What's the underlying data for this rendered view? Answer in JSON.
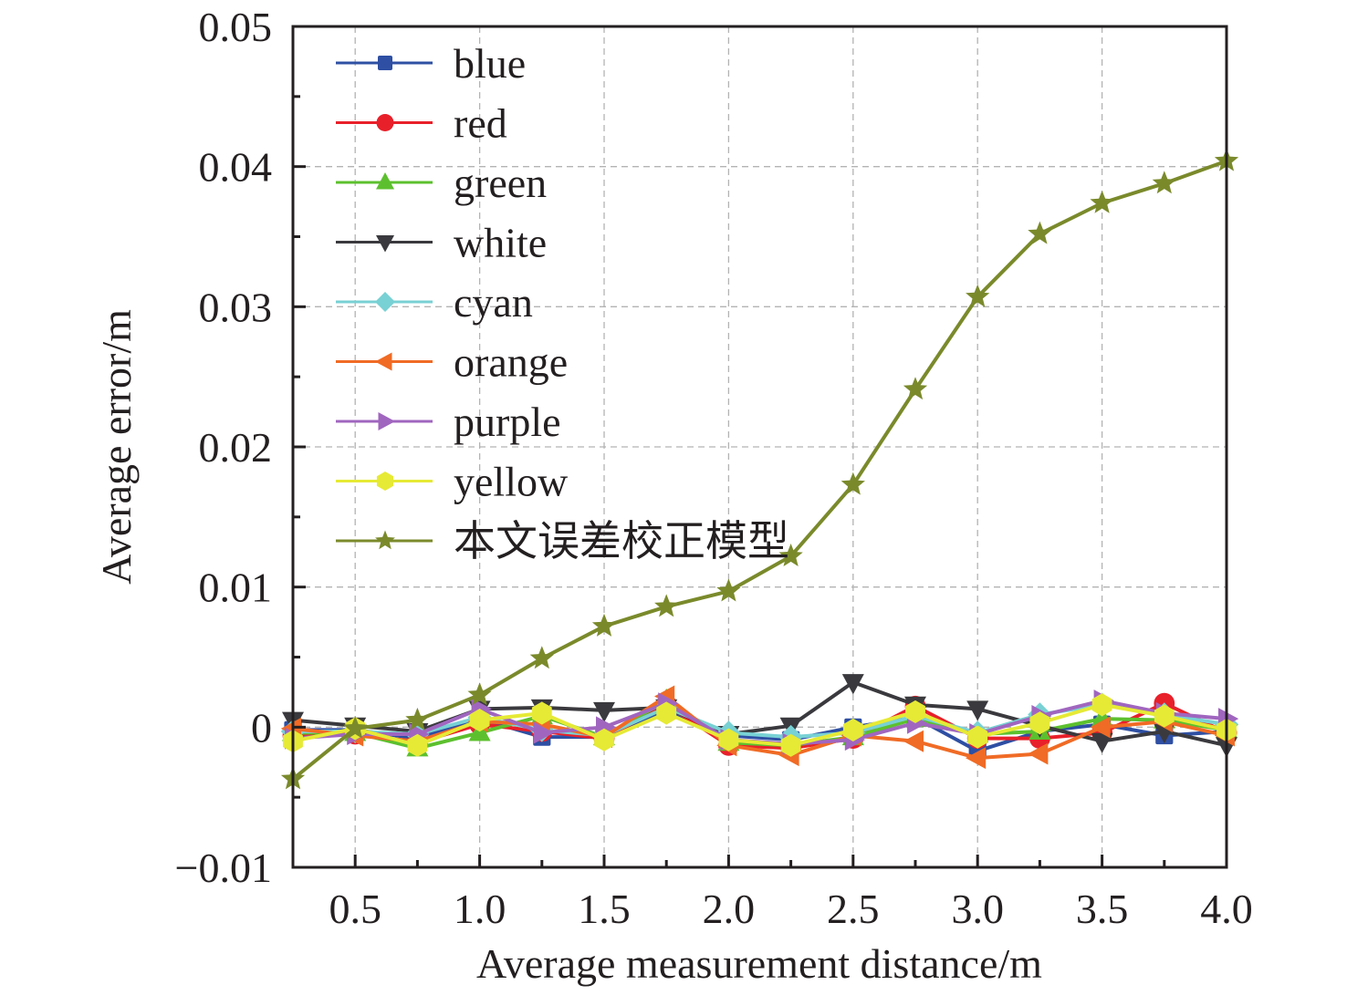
{
  "chart_data": {
    "type": "line",
    "title": "",
    "xlabel": "Average measurement distance/m",
    "ylabel": "Average error/m",
    "xlim": [
      0.25,
      4.0
    ],
    "ylim": [
      -0.01,
      0.05
    ],
    "grid": true,
    "legend_position": "top-left",
    "x_ticks": [
      "0.5",
      "1.0",
      "1.5",
      "2.0",
      "2.5",
      "3.0",
      "3.5",
      "4.0"
    ],
    "x_tick_values": [
      0.5,
      1.0,
      1.5,
      2.0,
      2.5,
      3.0,
      3.5,
      4.0
    ],
    "y_ticks": [
      "−0.01",
      "0",
      "0.01",
      "0.02",
      "0.03",
      "0.04",
      "0.05"
    ],
    "y_tick_values": [
      -0.01,
      0,
      0.01,
      0.02,
      0.03,
      0.04,
      0.05
    ],
    "x": [
      0.25,
      0.5,
      0.75,
      1.0,
      1.25,
      1.5,
      1.75,
      2.0,
      2.25,
      2.5,
      2.75,
      3.0,
      3.25,
      3.5,
      3.75,
      4.0
    ],
    "series": [
      {
        "name": "blue",
        "color": "#2e4fa3",
        "marker": "square",
        "values": [
          -0.0002,
          -0.0002,
          -0.0008,
          0.0006,
          -0.0007,
          -0.0007,
          0.0012,
          -0.0006,
          -0.0009,
          0.0,
          0.0007,
          -0.0017,
          -0.0003,
          0.0002,
          -0.0006,
          -0.0003
        ]
      },
      {
        "name": "red",
        "color": "#e8202a",
        "marker": "circle",
        "values": [
          -0.0006,
          -0.0005,
          -0.0011,
          0.0002,
          -0.0003,
          -0.0008,
          0.0016,
          -0.0013,
          -0.0015,
          -0.0008,
          0.0015,
          -0.0008,
          -0.0008,
          -0.0004,
          0.0017,
          -0.0004
        ]
      },
      {
        "name": "green",
        "color": "#5cc02e",
        "marker": "triangle-up",
        "values": [
          -0.0004,
          -0.0004,
          -0.0015,
          -0.0004,
          0.0008,
          -0.0007,
          0.0019,
          -0.0011,
          -0.0013,
          -0.0007,
          0.0006,
          -0.0005,
          -0.0003,
          0.0006,
          0.0005,
          -0.0002
        ]
      },
      {
        "name": "white",
        "color": "#3a3a3e",
        "marker": "triangle-down",
        "values": [
          0.0005,
          0.0001,
          -0.0003,
          0.0013,
          0.0014,
          0.0012,
          0.0014,
          -0.0005,
          0.0001,
          0.0032,
          0.0016,
          0.0013,
          0.0001,
          -0.001,
          -0.0003,
          -0.0013
        ]
      },
      {
        "name": "cyan",
        "color": "#78d1d4",
        "marker": "diamond",
        "values": [
          -0.0003,
          -0.0003,
          -0.0005,
          0.0007,
          -0.0002,
          -0.0006,
          0.0014,
          -0.0004,
          -0.0007,
          -0.0004,
          0.0008,
          -0.0004,
          0.0009,
          0.0016,
          0.0009,
          0.0002
        ]
      },
      {
        "name": "orange",
        "color": "#f06b25",
        "marker": "triangle-left",
        "values": [
          -0.0001,
          -0.0006,
          -0.001,
          0.0004,
          0.0002,
          -0.0007,
          0.0022,
          -0.0013,
          -0.002,
          -0.0006,
          -0.001,
          -0.0022,
          -0.0019,
          0.0,
          0.0004,
          -0.0006
        ]
      },
      {
        "name": "purple",
        "color": "#a066bf",
        "marker": "triangle-right",
        "values": [
          -0.0008,
          -0.0005,
          -0.0005,
          0.0013,
          -0.0004,
          0.0,
          0.0017,
          -0.0009,
          -0.0012,
          -0.0009,
          0.0003,
          -0.0005,
          0.0008,
          0.0019,
          0.001,
          0.0006
        ]
      },
      {
        "name": "yellow",
        "color": "#e6ea35",
        "marker": "hexagon",
        "values": [
          -0.001,
          -0.0001,
          -0.0013,
          0.0005,
          0.001,
          -0.0009,
          0.001,
          -0.0009,
          -0.0013,
          -0.0002,
          0.0011,
          -0.0007,
          0.0003,
          0.0016,
          0.0008,
          -0.0002
        ]
      },
      {
        "name": "本文误差校正模型",
        "color": "#7a8a2b",
        "marker": "star",
        "values": [
          -0.0037,
          -0.0001,
          0.0005,
          0.0023,
          0.0049,
          0.0072,
          0.0086,
          0.0097,
          0.0122,
          0.0173,
          0.0241,
          0.0307,
          0.0352,
          0.0374,
          0.0388,
          0.0404
        ]
      }
    ]
  }
}
